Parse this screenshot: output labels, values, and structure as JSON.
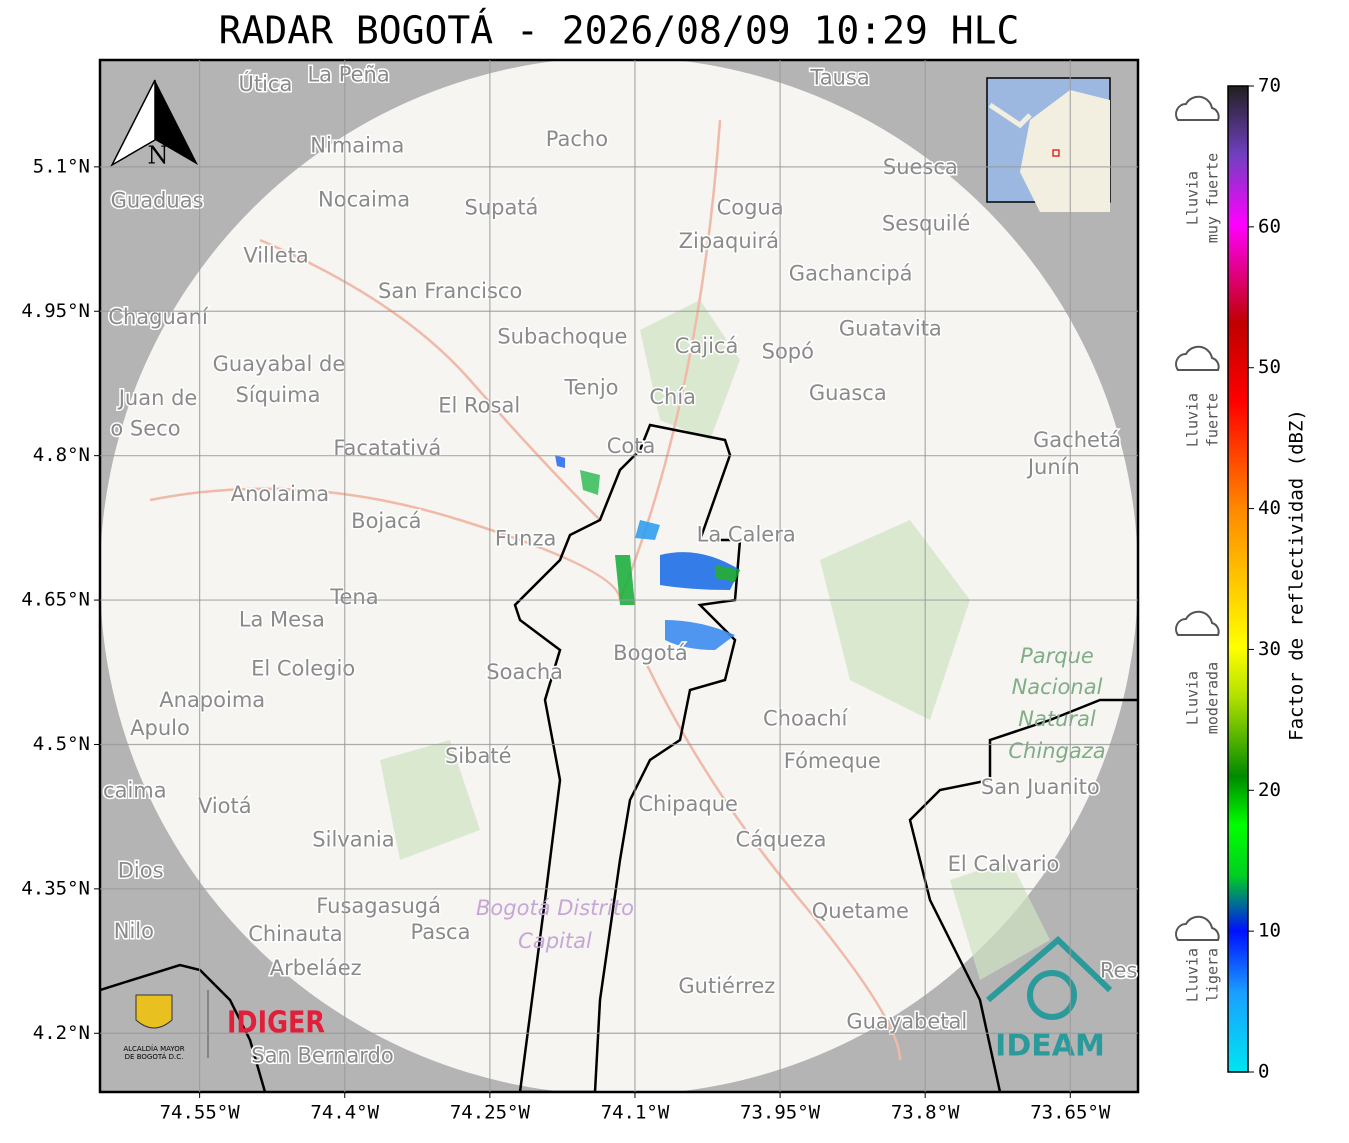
{
  "title": "RADAR BOGOTÁ - 2026/08/09 10:29 HLC",
  "map": {
    "xlim": [
      -74.653,
      -73.58
    ],
    "ylim": [
      4.139,
      5.211
    ],
    "xticks": [
      {
        "value": -74.55,
        "label": "74.55°W"
      },
      {
        "value": -74.4,
        "label": "74.4°W"
      },
      {
        "value": -74.25,
        "label": "74.25°W"
      },
      {
        "value": -74.1,
        "label": "74.1°W"
      },
      {
        "value": -73.95,
        "label": "73.95°W"
      },
      {
        "value": -73.8,
        "label": "73.8°W"
      },
      {
        "value": -73.65,
        "label": "73.65°W"
      }
    ],
    "yticks": [
      {
        "value": 5.1,
        "label": "5.1°N"
      },
      {
        "value": 4.95,
        "label": "4.95°N"
      },
      {
        "value": 4.8,
        "label": "4.8°N"
      },
      {
        "value": 4.65,
        "label": "4.65°N"
      },
      {
        "value": 4.5,
        "label": "4.5°N"
      },
      {
        "value": 4.35,
        "label": "4.35°N"
      },
      {
        "value": 4.2,
        "label": "4.2°N"
      }
    ],
    "places": [
      {
        "name": "Útica",
        "lon": -74.482,
        "lat": 5.185
      },
      {
        "name": "La Peña",
        "lon": -74.396,
        "lat": 5.195
      },
      {
        "name": "Tausa",
        "lon": -73.888,
        "lat": 5.192
      },
      {
        "name": "Pacho",
        "lon": -74.16,
        "lat": 5.128
      },
      {
        "name": "Nimaima",
        "lon": -74.387,
        "lat": 5.121
      },
      {
        "name": "Guaduas",
        "lon": -74.594,
        "lat": 5.064
      },
      {
        "name": "Nocaima",
        "lon": -74.38,
        "lat": 5.065
      },
      {
        "name": "Supatá",
        "lon": -74.238,
        "lat": 5.057
      },
      {
        "name": "Cogua",
        "lon": -73.981,
        "lat": 5.057
      },
      {
        "name": "Suesca",
        "lon": -73.805,
        "lat": 5.099
      },
      {
        "name": "Sesquilé",
        "lon": -73.799,
        "lat": 5.04
      },
      {
        "name": "Zipaquirá",
        "lon": -74.003,
        "lat": 5.022
      },
      {
        "name": "Villeta",
        "lon": -74.471,
        "lat": 5.007
      },
      {
        "name": "Gachancipá",
        "lon": -73.877,
        "lat": 4.988
      },
      {
        "name": "San Francisco",
        "lon": -74.291,
        "lat": 4.97
      },
      {
        "name": "Chaguaní",
        "lon": -74.593,
        "lat": 4.943
      },
      {
        "name": "Guatavita",
        "lon": -73.836,
        "lat": 4.931
      },
      {
        "name": "Subachoque",
        "lon": -74.175,
        "lat": 4.923
      },
      {
        "name": "Cajicá",
        "lon": -74.026,
        "lat": 4.913
      },
      {
        "name": "Sopó",
        "lon": -73.942,
        "lat": 4.907
      },
      {
        "name": "Guayabal de",
        "lon": -74.468,
        "lat": 4.894
      },
      {
        "name": "Síquima",
        "lon": -74.469,
        "lat": 4.862
      },
      {
        "name": "Juan de",
        "lon": -74.593,
        "lat": 4.859
      },
      {
        "name": "o Seco",
        "lon": -74.606,
        "lat": 4.827
      },
      {
        "name": "Tenjo",
        "lon": -74.145,
        "lat": 4.87
      },
      {
        "name": "Chía",
        "lon": -74.061,
        "lat": 4.86
      },
      {
        "name": "Guasca",
        "lon": -73.88,
        "lat": 4.864
      },
      {
        "name": "El Rosal",
        "lon": -74.261,
        "lat": 4.851
      },
      {
        "name": "Facatativá",
        "lon": -74.356,
        "lat": 4.807
      },
      {
        "name": "Cota",
        "lon": -74.104,
        "lat": 4.809
      },
      {
        "name": "Gachetá",
        "lon": -73.643,
        "lat": 4.815
      },
      {
        "name": "Junín",
        "lon": -73.667,
        "lat": 4.787
      },
      {
        "name": "Anolaima",
        "lon": -74.467,
        "lat": 4.759
      },
      {
        "name": "Bojacá",
        "lon": -74.357,
        "lat": 4.731
      },
      {
        "name": "Funza",
        "lon": -74.213,
        "lat": 4.713
      },
      {
        "name": "La Calera",
        "lon": -73.985,
        "lat": 4.717
      },
      {
        "name": "Tena",
        "lon": -74.39,
        "lat": 4.652
      },
      {
        "name": "La Mesa",
        "lon": -74.465,
        "lat": 4.629
      },
      {
        "name": "El Colegio",
        "lon": -74.443,
        "lat": 4.578
      },
      {
        "name": "Soacha",
        "lon": -74.214,
        "lat": 4.574
      },
      {
        "name": "Bogotá",
        "lon": -74.084,
        "lat": 4.594
      },
      {
        "name": "Anapoima",
        "lon": -74.537,
        "lat": 4.545
      },
      {
        "name": "Apulo",
        "lon": -74.591,
        "lat": 4.516
      },
      {
        "name": "Choachí",
        "lon": -73.924,
        "lat": 4.526
      },
      {
        "name": "Fómeque",
        "lon": -73.896,
        "lat": 4.482
      },
      {
        "name": "San Juanito",
        "lon": -73.681,
        "lat": 4.455
      },
      {
        "name": "Sibaté",
        "lon": -74.262,
        "lat": 4.487
      },
      {
        "name": "caima",
        "lon": -74.617,
        "lat": 4.451
      },
      {
        "name": "Viotá",
        "lon": -74.524,
        "lat": 4.435
      },
      {
        "name": "Chipaque",
        "lon": -74.045,
        "lat": 4.437
      },
      {
        "name": "Silvania",
        "lon": -74.391,
        "lat": 4.4
      },
      {
        "name": "Cáqueza",
        "lon": -73.949,
        "lat": 4.4
      },
      {
        "name": "Dios",
        "lon": -74.611,
        "lat": 4.368
      },
      {
        "name": "El Calvario",
        "lon": -73.719,
        "lat": 4.375
      },
      {
        "name": "Fusagasugá",
        "lon": -74.365,
        "lat": 4.331
      },
      {
        "name": "Quetame",
        "lon": -73.867,
        "lat": 4.326
      },
      {
        "name": "Nilo",
        "lon": -74.618,
        "lat": 4.305
      },
      {
        "name": "Chinauta",
        "lon": -74.451,
        "lat": 4.302
      },
      {
        "name": "Pasca",
        "lon": -74.301,
        "lat": 4.304
      },
      {
        "name": "Arbeláez",
        "lon": -74.43,
        "lat": 4.267
      },
      {
        "name": "Gutiérrez",
        "lon": -74.005,
        "lat": 4.248
      },
      {
        "name": "Guayabetal",
        "lon": -73.819,
        "lat": 4.211
      },
      {
        "name": "San Bernardo",
        "lon": -74.423,
        "lat": 4.176
      },
      {
        "name": "Res",
        "lon": -73.6,
        "lat": 4.264
      }
    ],
    "park_label": [
      "Parque",
      "Nacional",
      "Natural",
      "Chingaza"
    ],
    "district_label": [
      "Bogotá Distrito",
      "Capital"
    ]
  },
  "north": "N",
  "colorbar": {
    "label": "Factor de reflectividad (dBZ)",
    "lim": [
      0,
      70
    ],
    "ticks": [
      0,
      10,
      20,
      30,
      40,
      50,
      60,
      70
    ]
  },
  "legend": [
    [
      "Lluvia",
      "muy fuerte"
    ],
    [
      "Lluvia",
      "fuerte"
    ],
    [
      "Lluvia",
      "moderada"
    ],
    [
      "Lluvia",
      "ligera"
    ]
  ],
  "logos": {
    "alcaldia": "ALCALDÍA MAYOR",
    "alcaldia2": "DE BOGOTÁ D.C.",
    "idiger": "IDIGER",
    "ideam": "IDEAM"
  }
}
